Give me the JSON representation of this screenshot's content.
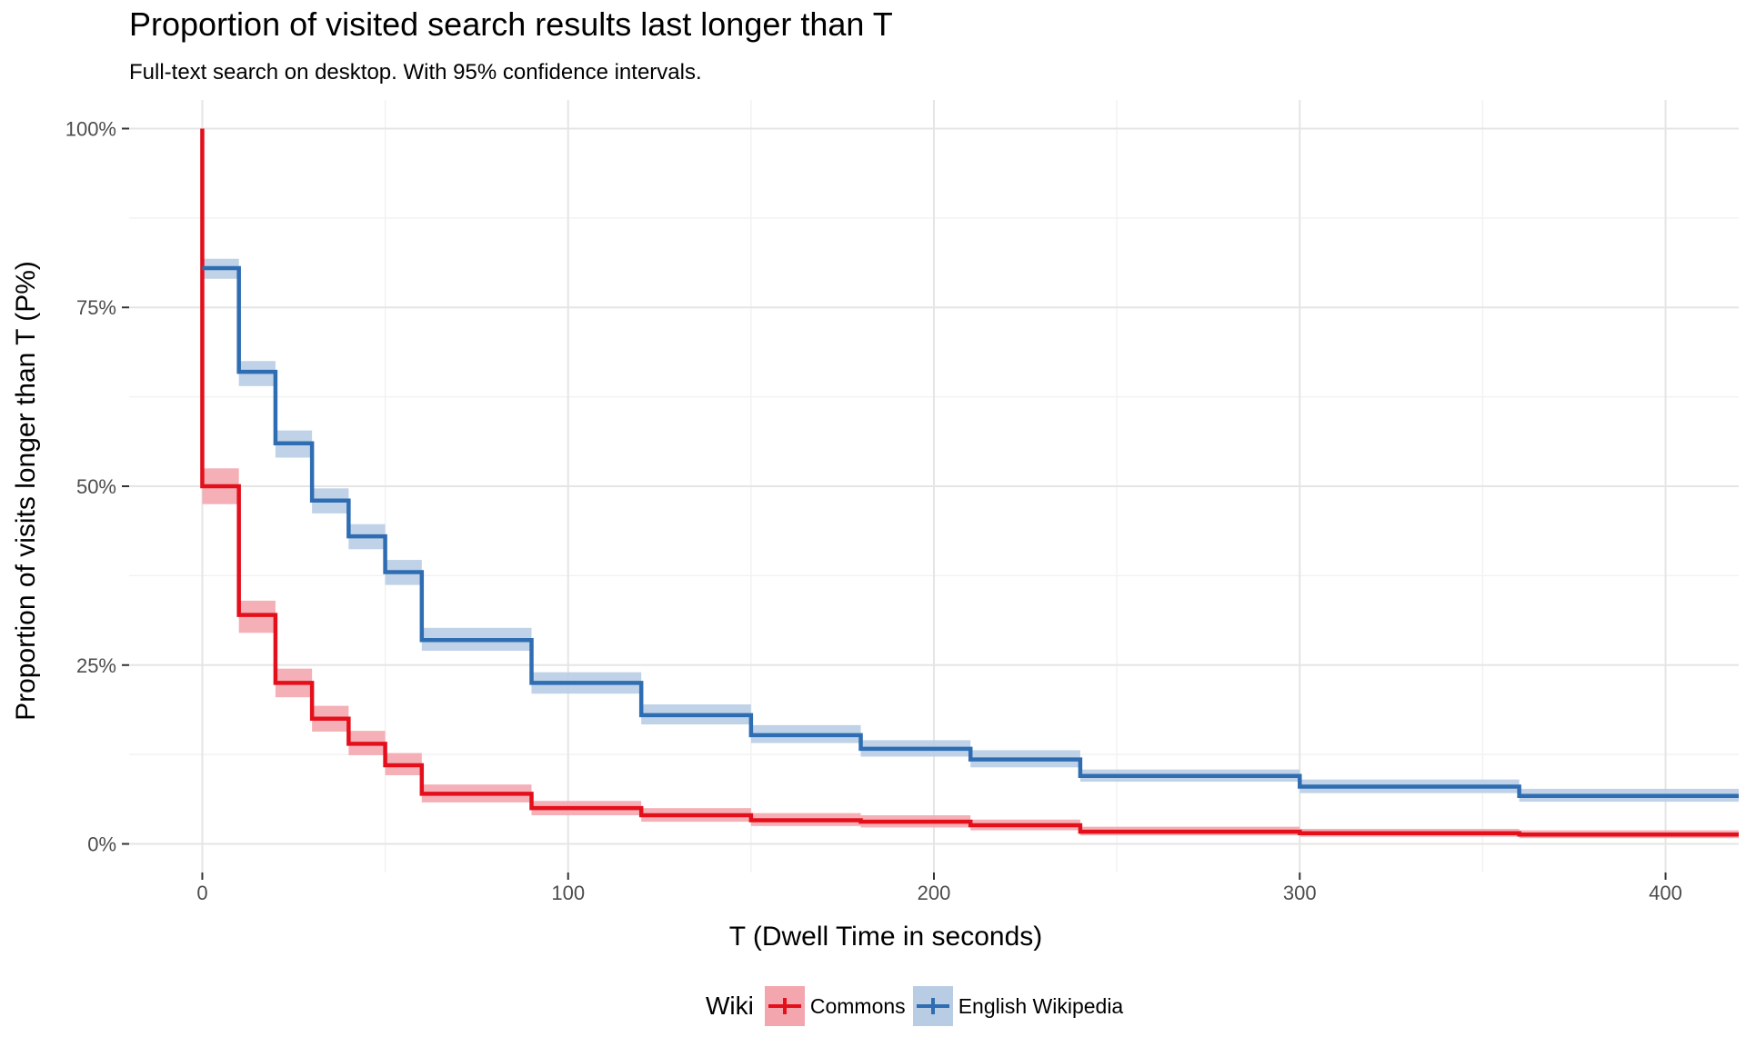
{
  "chart_data": {
    "type": "line",
    "step": true,
    "title": "Proportion of visited search results last longer than T",
    "subtitle": "Full-text search on desktop. With 95% confidence intervals.",
    "xlabel": "T (Dwell Time in seconds)",
    "ylabel": "Proportion of visits longer than T (P%)",
    "xlim": [
      -20,
      420
    ],
    "ylim": [
      0,
      1
    ],
    "x_ticks": [
      0,
      100,
      200,
      300,
      400
    ],
    "x_tick_labels": [
      "0",
      "100",
      "200",
      "300",
      "400"
    ],
    "y_ticks": [
      0,
      0.25,
      0.5,
      0.75,
      1.0
    ],
    "y_tick_labels": [
      "0%",
      "25%",
      "50%",
      "75%",
      "100%"
    ],
    "grid": true,
    "legend": {
      "title": "Wiki",
      "position": "bottom"
    },
    "series": [
      {
        "name": "Commons",
        "color": "#e3101c",
        "band_color": "#f4a6ae",
        "x": [
          0,
          10,
          20,
          30,
          40,
          50,
          60,
          90,
          120,
          150,
          180,
          210,
          240,
          300,
          360,
          420
        ],
        "y": [
          0.5,
          0.32,
          0.225,
          0.175,
          0.14,
          0.11,
          0.07,
          0.05,
          0.04,
          0.033,
          0.031,
          0.026,
          0.017,
          0.015,
          0.013,
          0.013
        ],
        "lower": [
          0.475,
          0.295,
          0.205,
          0.157,
          0.124,
          0.096,
          0.058,
          0.04,
          0.031,
          0.025,
          0.023,
          0.019,
          0.012,
          0.01,
          0.008,
          0.008
        ],
        "upper": [
          0.525,
          0.34,
          0.245,
          0.193,
          0.158,
          0.127,
          0.083,
          0.06,
          0.05,
          0.043,
          0.04,
          0.034,
          0.024,
          0.021,
          0.019,
          0.019
        ],
        "start_y": 1.0
      },
      {
        "name": "English Wikipedia",
        "color": "#2f6db2",
        "band_color": "#b8cde4",
        "x": [
          0,
          10,
          20,
          30,
          40,
          50,
          60,
          90,
          120,
          150,
          180,
          210,
          240,
          300,
          360,
          420
        ],
        "y": [
          0.805,
          0.66,
          0.56,
          0.48,
          0.43,
          0.38,
          0.285,
          0.225,
          0.18,
          0.152,
          0.133,
          0.118,
          0.095,
          0.08,
          0.067,
          0.067
        ],
        "lower": [
          0.79,
          0.64,
          0.54,
          0.462,
          0.412,
          0.362,
          0.27,
          0.21,
          0.167,
          0.141,
          0.122,
          0.107,
          0.087,
          0.071,
          0.059,
          0.059
        ],
        "upper": [
          0.818,
          0.675,
          0.578,
          0.497,
          0.447,
          0.397,
          0.302,
          0.24,
          0.195,
          0.166,
          0.145,
          0.131,
          0.104,
          0.09,
          0.077,
          0.077
        ]
      }
    ]
  }
}
